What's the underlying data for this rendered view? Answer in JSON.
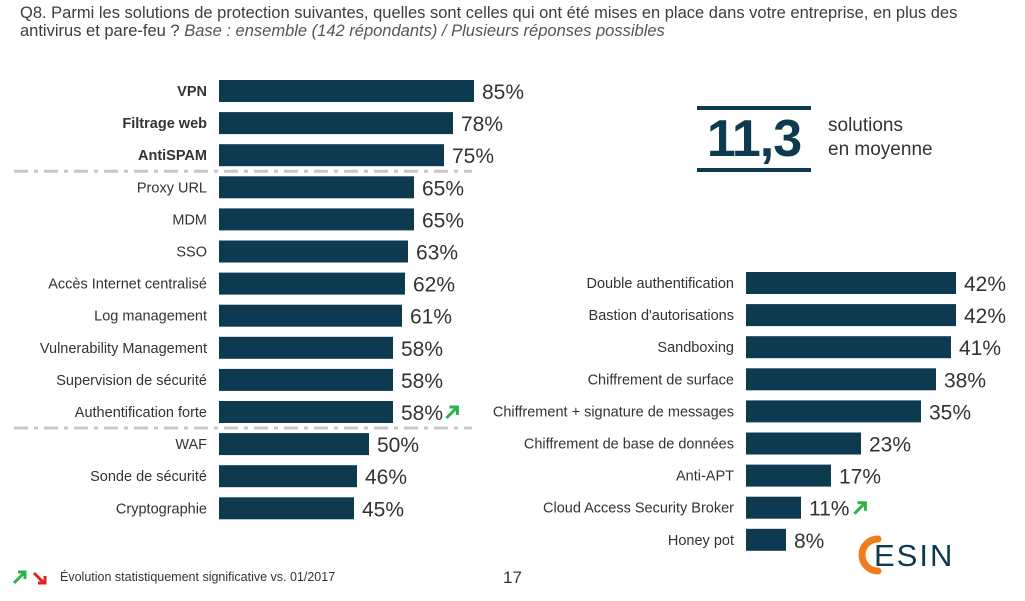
{
  "question": {
    "text": "Q8. Parmi les solutions de protection suivantes, quelles sont celles qui ont été mises en place dans votre entreprise, en plus des antivirus et pare-feu ?",
    "base": "Base : ensemble (142 répondants) / Plusieurs réponses possibles"
  },
  "average": {
    "value": "11,3",
    "caption_line1": "solutions",
    "caption_line2": "en moyenne"
  },
  "footer": {
    "legend": "Évolution statistiquement significative vs. 01/2017",
    "page_number": "17"
  },
  "logo": {
    "text": "CESIN"
  },
  "colors": {
    "bar": "#0e3a4f",
    "arrow_up": "#2db34a",
    "arrow_down": "#e2231a",
    "logo_text": "#0e3a4f",
    "logo_accent": "#f07d1a"
  },
  "chart_data": [
    {
      "type": "bar",
      "orientation": "horizontal",
      "unit": "%",
      "xlim": [
        0,
        100
      ],
      "categories": [
        "VPN",
        "Filtrage web",
        "AntiSPAM",
        "Proxy URL",
        "MDM",
        "SSO",
        "Accès Internet centralisé",
        "Log management",
        "Vulnerability Management",
        "Supervision de sécurité",
        "Authentification forte",
        "WAF",
        "Sonde de sécurité",
        "Cryptographie"
      ],
      "values": [
        85,
        78,
        75,
        65,
        65,
        63,
        62,
        61,
        58,
        58,
        58,
        50,
        46,
        45
      ],
      "bold_categories": [
        "VPN",
        "Filtrage web",
        "AntiSPAM"
      ],
      "significant_up": [
        "Authentification forte"
      ],
      "separators_after": [
        "AntiSPAM",
        "Authentification forte"
      ]
    },
    {
      "type": "bar",
      "orientation": "horizontal",
      "unit": "%",
      "xlim": [
        0,
        100
      ],
      "categories": [
        "Double authentification",
        "Bastion d'autorisations",
        "Sandboxing",
        "Chiffrement de surface",
        "Chiffrement + signature de messages",
        "Chiffrement de base de données",
        "Anti-APT",
        "Cloud Access Security Broker",
        "Honey pot"
      ],
      "values": [
        42,
        42,
        41,
        38,
        35,
        23,
        17,
        11,
        8
      ],
      "significant_up": [
        "Cloud Access Security Broker"
      ]
    }
  ]
}
